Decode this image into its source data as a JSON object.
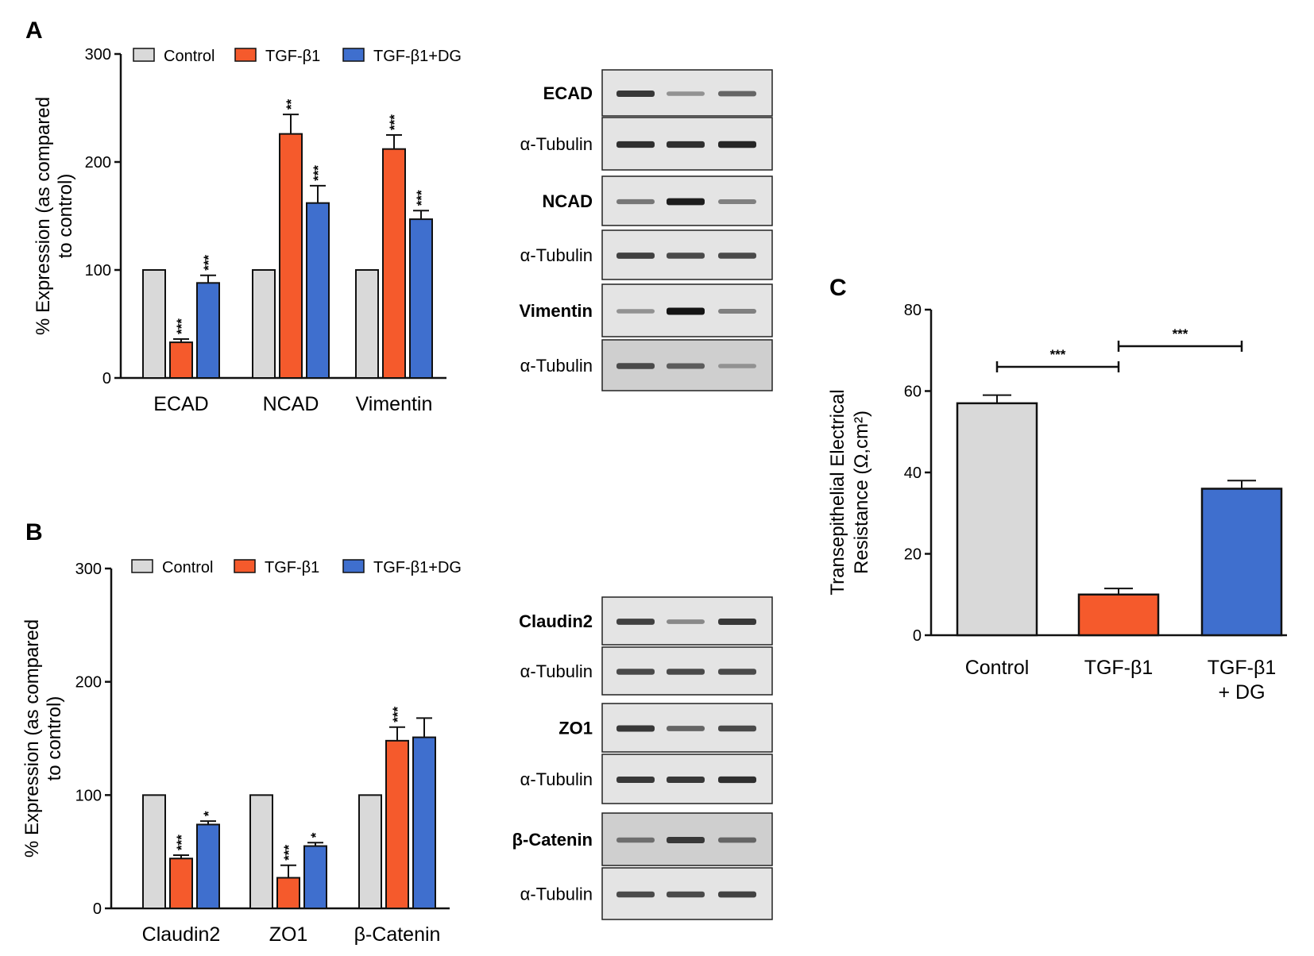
{
  "colors": {
    "control": "#d9d9d9",
    "tgf": "#f55a2c",
    "dg": "#3f6fce",
    "axis": "#111111"
  },
  "chart_data": [
    {
      "id": "A",
      "panel_letter": "A",
      "type": "bar",
      "ylabel_lines": [
        "% Expression (as compared",
        "to control)"
      ],
      "ylim": [
        0,
        300
      ],
      "yticks": [
        "0",
        "100",
        "200",
        "300"
      ],
      "categories": [
        "ECAD",
        "NCAD",
        "Vimentin"
      ],
      "series": [
        {
          "name": "Control",
          "values": [
            100,
            100,
            100
          ],
          "errors": [
            0,
            0,
            0
          ],
          "sig": [
            "",
            "",
            ""
          ]
        },
        {
          "name": "TGF-β1",
          "values": [
            33,
            226,
            212
          ],
          "errors": [
            3,
            18,
            13
          ],
          "sig": [
            "***",
            "**",
            "***"
          ]
        },
        {
          "name": "TGF-β1+DG",
          "values": [
            88,
            162,
            147
          ],
          "errors": [
            7,
            16,
            8
          ],
          "sig": [
            "***",
            "***",
            "***"
          ]
        }
      ]
    },
    {
      "id": "B",
      "panel_letter": "B",
      "type": "bar",
      "ylabel_lines": [
        "% Expression (as compared",
        "to control)"
      ],
      "ylim": [
        0,
        300
      ],
      "yticks": [
        "0",
        "100",
        "200",
        "300"
      ],
      "categories": [
        "Claudin2",
        "ZO1",
        "β-Catenin"
      ],
      "series": [
        {
          "name": "Control",
          "values": [
            100,
            100,
            100
          ],
          "errors": [
            0,
            0,
            0
          ],
          "sig": [
            "",
            "",
            ""
          ]
        },
        {
          "name": "TGF-β1",
          "values": [
            44,
            27,
            148
          ],
          "errors": [
            3,
            11,
            12
          ],
          "sig": [
            "***",
            "***",
            "***"
          ]
        },
        {
          "name": "TGF-β1+DG",
          "values": [
            74,
            55,
            151
          ],
          "errors": [
            3,
            3,
            17
          ],
          "sig": [
            "*",
            "*",
            ""
          ]
        }
      ]
    },
    {
      "id": "C",
      "panel_letter": "C",
      "type": "bar",
      "ylabel_lines": [
        "Transepithelial Electrical",
        "Resistance (Ω,cm²)"
      ],
      "ylim": [
        0,
        80
      ],
      "yticks": [
        "0",
        "20",
        "40",
        "60",
        "80"
      ],
      "categories": [
        [
          "Control"
        ],
        [
          "TGF-β1"
        ],
        [
          "TGF-β1",
          "+ DG"
        ]
      ],
      "values": [
        57,
        10,
        36
      ],
      "errors": [
        2,
        1.5,
        2
      ],
      "comparisons": [
        {
          "from": 0,
          "to": 1,
          "label": "***"
        },
        {
          "from": 1,
          "to": 2,
          "label": "***"
        }
      ]
    }
  ],
  "western_blots": {
    "A": [
      {
        "label": "ECAD",
        "bold": true,
        "intensity": [
          0.8,
          0.3,
          0.55
        ]
      },
      {
        "label": "α-Tubulin",
        "bold": false,
        "intensity": [
          0.85,
          0.85,
          0.9
        ]
      },
      {
        "label": "NCAD",
        "bold": true,
        "intensity": [
          0.45,
          0.95,
          0.4
        ]
      },
      {
        "label": "α-Tubulin",
        "bold": false,
        "intensity": [
          0.75,
          0.7,
          0.7
        ]
      },
      {
        "label": "Vimentin",
        "bold": true,
        "intensity": [
          0.3,
          1.0,
          0.4
        ]
      },
      {
        "label": "α-Tubulin",
        "bold": false,
        "intensity": [
          0.7,
          0.6,
          0.3
        ]
      }
    ],
    "B": [
      {
        "label": "Claudin2",
        "bold": true,
        "intensity": [
          0.75,
          0.35,
          0.8
        ]
      },
      {
        "label": "α-Tubulin",
        "bold": false,
        "intensity": [
          0.7,
          0.7,
          0.7
        ]
      },
      {
        "label": "ZO1",
        "bold": true,
        "intensity": [
          0.8,
          0.55,
          0.7
        ]
      },
      {
        "label": "α-Tubulin",
        "bold": false,
        "intensity": [
          0.8,
          0.8,
          0.85
        ]
      },
      {
        "label": "β-Catenin",
        "bold": true,
        "intensity": [
          0.5,
          0.8,
          0.55
        ]
      },
      {
        "label": "α-Tubulin",
        "bold": false,
        "intensity": [
          0.7,
          0.7,
          0.75
        ]
      }
    ]
  }
}
